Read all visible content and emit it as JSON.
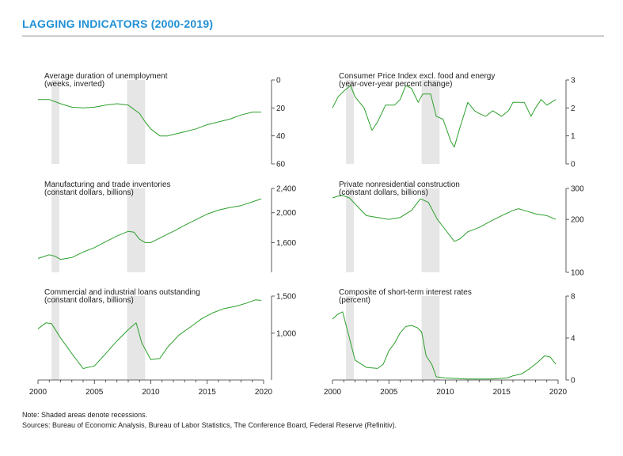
{
  "title": "LAGGING INDICATORS (2000-2019)",
  "notes": {
    "note": "Note: Shaded areas denote recessions.",
    "sources": "Sources: Bureau of Economic Analysis, Bureau of Labor Statistics, The Conference Board, Federal Reserve (Refinitiv)."
  },
  "colors": {
    "title": "#1f8fd4",
    "line": "#2ca02c",
    "recession": "#e6e6e6"
  },
  "chart_data": [
    {
      "type": "line",
      "title": "Average duration of unemployment",
      "subtitle": "(weeks, inverted)",
      "xlim": [
        2000,
        2020
      ],
      "ylim": [
        0,
        60
      ],
      "inverted": true,
      "yticks": [
        0,
        20,
        40,
        60
      ],
      "ytick_labels": [
        "0",
        "20",
        "40",
        "60"
      ],
      "recessions": [
        [
          2001.2,
          2001.9
        ],
        [
          2007.9,
          2009.5
        ]
      ],
      "x": [
        2000,
        2001,
        2002,
        2003,
        2004,
        2005,
        2006,
        2007,
        2008,
        2009,
        2009.5,
        2010,
        2010.8,
        2011.5,
        2012,
        2013,
        2014,
        2015,
        2016,
        2017,
        2018,
        2019,
        2019.8
      ],
      "values": [
        14,
        14,
        17,
        19.5,
        20,
        19.5,
        18,
        17,
        18,
        24,
        30,
        35,
        40,
        40,
        39,
        37,
        35,
        32,
        30,
        28,
        25,
        23,
        23
      ]
    },
    {
      "type": "line",
      "title": "Consumer Price Index excl. food and energy",
      "subtitle": "(year-over-year percent change)",
      "xlim": [
        2000,
        2020
      ],
      "ylim": [
        0,
        3
      ],
      "yticks": [
        0,
        1,
        2,
        3
      ],
      "ytick_labels": [
        "0",
        "1",
        "2",
        "3"
      ],
      "recessions": [
        [
          2001.2,
          2001.9
        ],
        [
          2007.9,
          2009.5
        ]
      ],
      "x": [
        2000,
        2000.5,
        2001,
        2001.6,
        2002,
        2002.8,
        2003.5,
        2004,
        2004.7,
        2005.5,
        2006,
        2006.5,
        2007,
        2007.6,
        2008,
        2008.7,
        2009.2,
        2009.8,
        2010.5,
        2010.8,
        2011.3,
        2012,
        2012.6,
        2013,
        2013.6,
        2014.2,
        2015,
        2015.6,
        2016,
        2016.6,
        2017,
        2017.6,
        2018,
        2018.5,
        2019,
        2019.8
      ],
      "values": [
        2.0,
        2.4,
        2.6,
        2.8,
        2.4,
        2.0,
        1.2,
        1.5,
        2.1,
        2.1,
        2.3,
        2.8,
        2.7,
        2.2,
        2.5,
        2.5,
        1.7,
        1.6,
        0.8,
        0.6,
        1.3,
        2.2,
        1.9,
        1.8,
        1.7,
        1.9,
        1.7,
        1.9,
        2.2,
        2.2,
        2.2,
        1.7,
        2.0,
        2.3,
        2.1,
        2.3
      ]
    },
    {
      "type": "line",
      "title": "Manufacturing and trade inventories",
      "subtitle": "(constant dollars, billions)",
      "xlim": [
        2000,
        2020
      ],
      "ylim": [
        1280,
        2400
      ],
      "log": true,
      "yticks": [
        1600,
        2000,
        2400
      ],
      "ytick_labels": [
        "1,600",
        "2,000",
        "2,400"
      ],
      "recessions": [
        [
          2001.2,
          2001.9
        ],
        [
          2007.9,
          2009.5
        ]
      ],
      "x": [
        2000,
        2000.5,
        2001,
        2001.5,
        2002,
        2003,
        2004,
        2005,
        2006,
        2007,
        2008,
        2008.5,
        2009,
        2009.5,
        2010,
        2011,
        2012,
        2013,
        2014,
        2015,
        2016,
        2017,
        2018,
        2019,
        2019.8
      ],
      "values": [
        1420,
        1440,
        1460,
        1445,
        1410,
        1430,
        1490,
        1540,
        1610,
        1680,
        1740,
        1730,
        1640,
        1600,
        1600,
        1670,
        1740,
        1820,
        1900,
        1980,
        2040,
        2080,
        2110,
        2170,
        2220
      ]
    },
    {
      "type": "line",
      "title": "Private nonresidential construction",
      "subtitle": "(constant dollars, billions)",
      "xlim": [
        2000,
        2020
      ],
      "ylim": [
        100,
        300
      ],
      "log": true,
      "yticks": [
        100,
        200,
        300
      ],
      "ytick_labels": [
        "100",
        "200",
        "300"
      ],
      "recessions": [
        [
          2001.2,
          2001.9
        ],
        [
          2007.9,
          2009.5
        ]
      ],
      "x": [
        2000,
        2000.8,
        2001.5,
        2002,
        2003,
        2004,
        2005,
        2006,
        2007,
        2007.8,
        2008.5,
        2009.3,
        2010,
        2010.8,
        2011.3,
        2012,
        2013,
        2014,
        2015,
        2016,
        2016.5,
        2017,
        2018,
        2019,
        2019.8
      ],
      "values": [
        265,
        275,
        265,
        245,
        210,
        205,
        200,
        205,
        225,
        262,
        250,
        200,
        175,
        150,
        155,
        170,
        180,
        195,
        210,
        225,
        230,
        225,
        215,
        210,
        200
      ]
    },
    {
      "type": "line",
      "title": "Commercial and industrial loans outstanding",
      "subtitle": "(constant dollars, billions)",
      "xlim": [
        2000,
        2020
      ],
      "ylim": [
        600,
        1500
      ],
      "log": true,
      "yticks": [
        1000,
        1500
      ],
      "ytick_labels": [
        "1,000",
        "1,500"
      ],
      "recessions": [
        [
          2001.2,
          2001.9
        ],
        [
          2007.9,
          2009.5
        ]
      ],
      "x": [
        2000,
        2000.7,
        2001.2,
        2002,
        2003,
        2004,
        2005,
        2006,
        2007,
        2008,
        2008.7,
        2009.2,
        2010,
        2010.8,
        2011.5,
        2012.5,
        2013.5,
        2014.5,
        2015.5,
        2016.5,
        2017.5,
        2018.5,
        2019.3,
        2019.8
      ],
      "values": [
        1050,
        1120,
        1110,
        950,
        800,
        680,
        700,
        800,
        920,
        1040,
        1120,
        900,
        750,
        760,
        860,
        980,
        1070,
        1170,
        1250,
        1310,
        1340,
        1390,
        1440,
        1430
      ]
    },
    {
      "type": "line",
      "title": "Composite of short-term interest rates",
      "subtitle": "(percent)",
      "xlim": [
        2000,
        2020
      ],
      "ylim": [
        0,
        8
      ],
      "yticks": [
        0,
        4,
        8
      ],
      "ytick_labels": [
        "0",
        "4",
        "8"
      ],
      "recessions": [
        [
          2001.2,
          2001.9
        ],
        [
          2007.9,
          2009.5
        ]
      ],
      "x": [
        2000,
        2000.5,
        2000.9,
        2001.5,
        2002,
        2003,
        2004,
        2004.5,
        2005,
        2005.5,
        2006,
        2006.5,
        2007,
        2007.5,
        2007.9,
        2008.3,
        2008.8,
        2009.2,
        2010,
        2012,
        2014,
        2015.5,
        2016,
        2016.8,
        2017.5,
        2018.2,
        2018.8,
        2019.3,
        2019.8
      ],
      "values": [
        5.8,
        6.3,
        6.5,
        4.0,
        1.9,
        1.2,
        1.1,
        1.5,
        2.8,
        3.5,
        4.5,
        5.1,
        5.2,
        5.0,
        4.6,
        2.3,
        1.5,
        0.3,
        0.2,
        0.1,
        0.1,
        0.2,
        0.4,
        0.6,
        1.1,
        1.7,
        2.3,
        2.2,
        1.5
      ]
    }
  ]
}
